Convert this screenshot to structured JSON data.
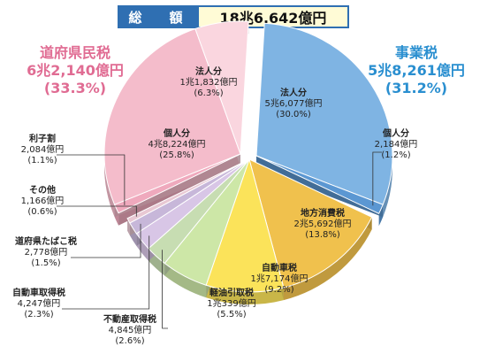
{
  "total": {
    "label": "総　額",
    "value": "18兆6,642億円"
  },
  "groups": {
    "prefectural": {
      "name": "道府県民税",
      "amount": "6兆2,140億円",
      "pct": "(33.3%)"
    },
    "business": {
      "name": "事業税",
      "amount": "5兆8,261億円",
      "pct": "(31.2%)"
    }
  },
  "chart_data": {
    "type": "pie",
    "unit": "億円",
    "slices": [
      {
        "name": "法人分",
        "label": "5兆6,077億円",
        "pct": "(30.0%)",
        "value": 56077,
        "percent": 30.0,
        "group": "事業税",
        "color": "#7fb4e3"
      },
      {
        "name": "個人分",
        "label": "2,184億円",
        "pct": "(1.2%)",
        "value": 2184,
        "percent": 1.2,
        "group": "事業税",
        "color": "#5b97d2"
      },
      {
        "name": "地方消費税",
        "label": "2兆5,692億円",
        "pct": "(13.8%)",
        "value": 25692,
        "percent": 13.8,
        "color": "#f0c14d"
      },
      {
        "name": "自動車税",
        "label": "1兆7,174億円",
        "pct": "(9.2%)",
        "value": 17174,
        "percent": 9.2,
        "color": "#fbe35a"
      },
      {
        "name": "軽油引取税",
        "label": "1兆339億円",
        "pct": "(5.5%)",
        "value": 10339,
        "percent": 5.5,
        "color": "#cde7a7"
      },
      {
        "name": "不動産取得税",
        "label": "4,845億円",
        "pct": "(2.6%)",
        "value": 4845,
        "percent": 2.6,
        "color": "#c7ddb2"
      },
      {
        "name": "自動車取得税",
        "label": "4,247億円",
        "pct": "(2.3%)",
        "value": 4247,
        "percent": 2.3,
        "color": "#d8c6e6"
      },
      {
        "name": "道府県たばこ税",
        "label": "2,778億円",
        "pct": "(1.5%)",
        "value": 2778,
        "percent": 1.5,
        "color": "#c7b7d9"
      },
      {
        "name": "その他",
        "label": "1,166億円",
        "pct": "(0.6%)",
        "value": 1166,
        "percent": 0.6,
        "color": "#e8c8d3"
      },
      {
        "name": "利子割",
        "label": "2,084億円",
        "pct": "(1.1%)",
        "value": 2084,
        "percent": 1.1,
        "group": "道府県民税",
        "color": "#efa9bd"
      },
      {
        "name": "個人分",
        "label": "4兆8,224億円",
        "pct": "(25.8%)",
        "value": 48224,
        "percent": 25.8,
        "group": "道府県民税",
        "color": "#f4bccb"
      },
      {
        "name": "法人分",
        "label": "1兆1,832億円",
        "pct": "(6.3%)",
        "value": 11832,
        "percent": 6.3,
        "group": "道府県民税",
        "color": "#fad6df"
      }
    ]
  }
}
